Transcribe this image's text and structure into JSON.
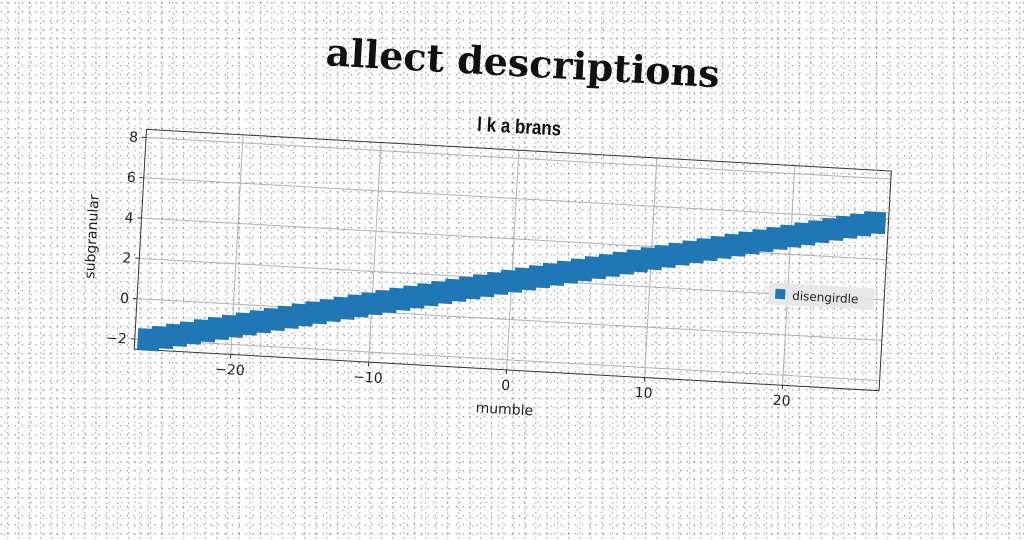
{
  "figure": {
    "title": "allect descriptions"
  },
  "chart_data": {
    "type": "scatter",
    "title": "l k a brans",
    "xlabel": "mumble",
    "ylabel": "subgranular",
    "xlim": [
      -27,
      27
    ],
    "ylim": [
      -2.5,
      8.4
    ],
    "xticks": [
      -20,
      -10,
      0,
      10,
      20
    ],
    "xtick_labels": [
      "−20",
      "−10",
      "0",
      "10",
      "20"
    ],
    "yticks": [
      -2,
      0,
      2,
      4,
      6,
      8
    ],
    "ytick_labels": [
      "−2",
      "0",
      "2",
      "4",
      "6",
      "8"
    ],
    "grid": true,
    "legend_position": "center-right",
    "marker": "square",
    "series": [
      {
        "name": "disengirdle",
        "color": "#1f77b4",
        "x": [
          -26,
          -25,
          -24,
          -23,
          -22,
          -21,
          -20,
          -19,
          -18,
          -17,
          -16,
          -15,
          -14,
          -13,
          -12,
          -11,
          -10,
          -9,
          -8,
          -7,
          -6,
          -5,
          -4,
          -3,
          -2,
          -1,
          0,
          1,
          2,
          3,
          4,
          5,
          6,
          7,
          8,
          9,
          10,
          11,
          12,
          13,
          14,
          15,
          16,
          17,
          18,
          19,
          20,
          21,
          22,
          23,
          24,
          25,
          26
        ],
        "y": [
          -2.0,
          -1.85,
          -1.7,
          -1.55,
          -1.4,
          -1.25,
          -1.1,
          -0.95,
          -0.8,
          -0.65,
          -0.5,
          -0.35,
          -0.2,
          -0.05,
          0.1,
          0.25,
          0.4,
          0.55,
          0.7,
          0.85,
          1.0,
          1.15,
          1.3,
          1.45,
          1.6,
          1.75,
          1.9,
          2.05,
          2.2,
          2.35,
          2.5,
          2.65,
          2.8,
          2.95,
          3.1,
          3.25,
          3.4,
          3.55,
          3.7,
          3.85,
          4.0,
          4.15,
          4.3,
          4.45,
          4.6,
          4.75,
          4.9,
          5.05,
          5.2,
          5.35,
          5.5,
          5.65,
          5.8
        ]
      }
    ]
  }
}
